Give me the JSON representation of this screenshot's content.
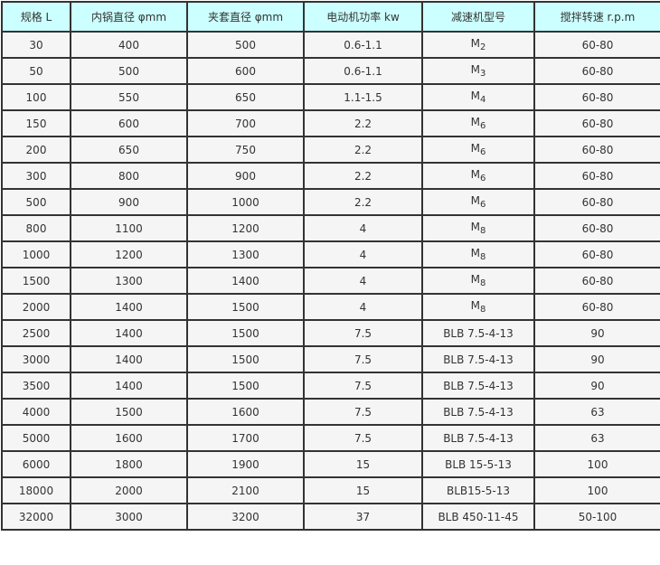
{
  "headers": [
    "规格 L",
    "内锅直径 φmm",
    "夹套直径 φmm",
    "电动机功率 kw",
    "减速机型号",
    "搅拌转速 r.p.m"
  ],
  "colors": {
    "header_bg": "#ccffff",
    "cell_bg": "#f5f5f5",
    "border": "#333333"
  },
  "rows": [
    {
      "spec": "30",
      "inner": "400",
      "jacket": "500",
      "power": "0.6-1.1",
      "model": "M",
      "model_sub": "2",
      "speed": "60-80"
    },
    {
      "spec": "50",
      "inner": "500",
      "jacket": "600",
      "power": "0.6-1.1",
      "model": "M",
      "model_sub": "3",
      "speed": "60-80"
    },
    {
      "spec": "100",
      "inner": "550",
      "jacket": "650",
      "power": "1.1-1.5",
      "model": "M",
      "model_sub": "4",
      "speed": "60-80"
    },
    {
      "spec": "150",
      "inner": "600",
      "jacket": "700",
      "power": "2.2",
      "model": "M",
      "model_sub": "6",
      "speed": "60-80"
    },
    {
      "spec": "200",
      "inner": "650",
      "jacket": "750",
      "power": "2.2",
      "model": "M",
      "model_sub": "6",
      "speed": "60-80"
    },
    {
      "spec": "300",
      "inner": "800",
      "jacket": "900",
      "power": "2.2",
      "model": "M",
      "model_sub": "6",
      "speed": "60-80"
    },
    {
      "spec": "500",
      "inner": "900",
      "jacket": "1000",
      "power": "2.2",
      "model": "M",
      "model_sub": "6",
      "speed": "60-80"
    },
    {
      "spec": "800",
      "inner": "1100",
      "jacket": "1200",
      "power": "4",
      "model": "M",
      "model_sub": "8",
      "speed": "60-80"
    },
    {
      "spec": "1000",
      "inner": "1200",
      "jacket": "1300",
      "power": "4",
      "model": "M",
      "model_sub": "8",
      "speed": "60-80"
    },
    {
      "spec": "1500",
      "inner": "1300",
      "jacket": "1400",
      "power": "4",
      "model": "M",
      "model_sub": "8",
      "speed": "60-80"
    },
    {
      "spec": "2000",
      "inner": "1400",
      "jacket": "1500",
      "power": "4",
      "model": "M",
      "model_sub": "8",
      "speed": "60-80"
    },
    {
      "spec": "2500",
      "inner": "1400",
      "jacket": "1500",
      "power": "7.5",
      "model": "BLB 7.5-4-13",
      "model_sub": "",
      "speed": "90"
    },
    {
      "spec": "3000",
      "inner": "1400",
      "jacket": "1500",
      "power": "7.5",
      "model": "BLB 7.5-4-13",
      "model_sub": "",
      "speed": "90"
    },
    {
      "spec": "3500",
      "inner": "1400",
      "jacket": "1500",
      "power": "7.5",
      "model": "BLB 7.5-4-13",
      "model_sub": "",
      "speed": "90"
    },
    {
      "spec": "4000",
      "inner": "1500",
      "jacket": "1600",
      "power": "7.5",
      "model": "BLB 7.5-4-13",
      "model_sub": "",
      "speed": "63"
    },
    {
      "spec": "5000",
      "inner": "1600",
      "jacket": "1700",
      "power": "7.5",
      "model": "BLB 7.5-4-13",
      "model_sub": "",
      "speed": "63"
    },
    {
      "spec": "6000",
      "inner": "1800",
      "jacket": "1900",
      "power": "15",
      "model": "BLB 15-5-13",
      "model_sub": "",
      "speed": "100"
    },
    {
      "spec": "18000",
      "inner": "2000",
      "jacket": "2100",
      "power": "15",
      "model": "BLB15-5-13",
      "model_sub": "",
      "speed": "100"
    },
    {
      "spec": "32000",
      "inner": "3000",
      "jacket": "3200",
      "power": "37",
      "model": "BLB 450-11-45",
      "model_sub": "",
      "speed": "50-100"
    }
  ]
}
